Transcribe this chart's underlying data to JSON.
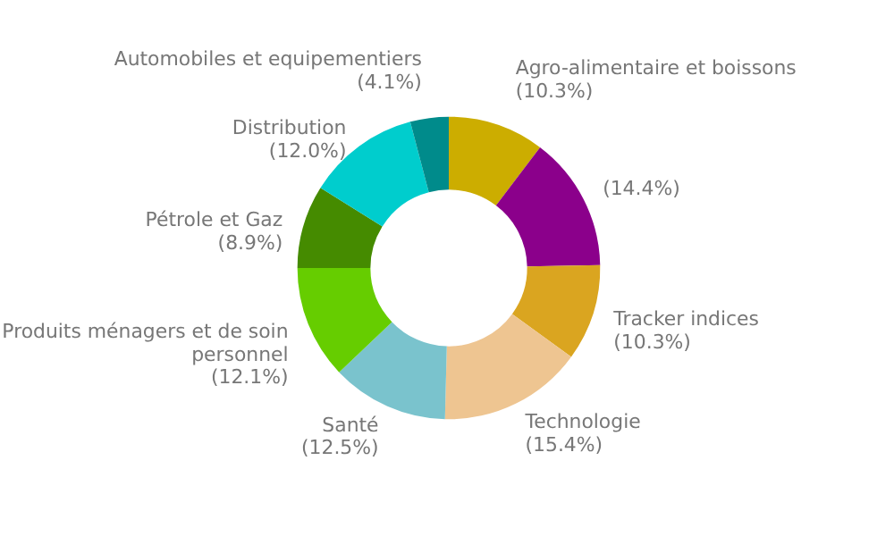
{
  "chart_data": {
    "type": "donut",
    "categories": [
      "Agro-alimentaire et boissons",
      null,
      "Tracker indices",
      "Technologie",
      "Santé",
      "Produits ménagers et de soin personnel",
      "Pétrole et Gaz",
      "Distribution",
      "Automobiles et equipementiers"
    ],
    "values": [
      10.3,
      14.4,
      10.3,
      15.4,
      12.5,
      12.1,
      8.9,
      12.0,
      4.1
    ],
    "value_labels": [
      "(10.3%)",
      "(14.4%)",
      "(10.3%)",
      "(15.4%)",
      "(12.5%)",
      "(12.1%)",
      "(8.9%)",
      "(12.0%)",
      "(4.1%)"
    ],
    "colors": [
      "#ccad00",
      "#8b008b",
      "#daa520",
      "#eec591",
      "#7ac3cd",
      "#66cd00",
      "#458b00",
      "#00cdcd",
      "#008b8b"
    ],
    "legend": false
  }
}
